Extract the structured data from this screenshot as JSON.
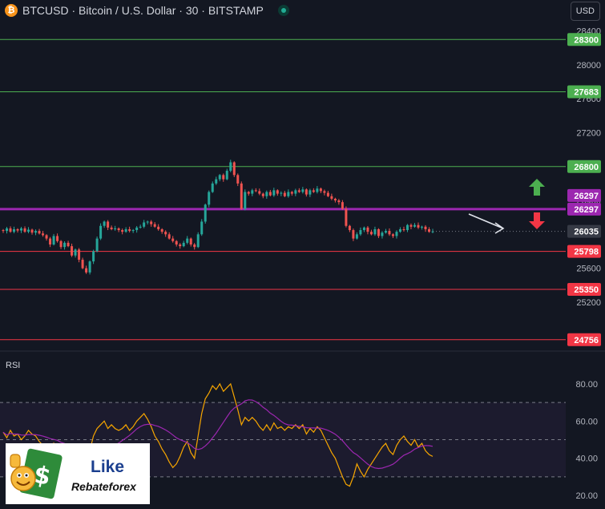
{
  "header": {
    "symbol_title": "BTCUSD · Bitcoin / U.S. Dollar · 30 · BITSTAMP",
    "icon": "bitcoin-icon",
    "currency": "USD"
  },
  "colors": {
    "background": "#131722",
    "up": "#26a69a",
    "down": "#ef5350",
    "resistance": "#4caf50",
    "support": "#f23645",
    "pivot": "#9c27b0",
    "rsi": "#f7a600",
    "rsi_ma": "#9c27b0"
  },
  "chart_data": [
    {
      "type": "candlestick",
      "title": "BTCUSD · Bitcoin / U.S. Dollar · 30 · BITSTAMP",
      "price_axis_ticks": [
        25200,
        25600,
        26000,
        26400,
        26800,
        27200,
        27600,
        28000,
        28400
      ],
      "ylim": [
        24650,
        28520
      ],
      "levels": [
        {
          "label": "28300",
          "value": 28300,
          "kind": "resistance"
        },
        {
          "label": "27683",
          "value": 27683,
          "kind": "resistance"
        },
        {
          "label": "26800",
          "value": 26800,
          "kind": "resistance"
        },
        {
          "label": "26297",
          "value": 26297,
          "kind": "pivot"
        },
        {
          "label": "25798",
          "value": 25798,
          "kind": "support"
        },
        {
          "label": "25350",
          "value": 25350,
          "kind": "support"
        },
        {
          "label": "24756",
          "value": 24756,
          "kind": "support"
        }
      ],
      "pivot_labels": [
        "26297",
        "26297"
      ],
      "current_price": {
        "label": "26035",
        "value": 26035
      },
      "close_path": [
        26040,
        26070,
        26030,
        26060,
        26045,
        26070,
        26030,
        26055,
        26020,
        26040,
        26010,
        25990,
        25950,
        25880,
        25980,
        25920,
        25850,
        25900,
        25860,
        25750,
        25820,
        25700,
        25600,
        25550,
        25680,
        25800,
        25950,
        26100,
        26150,
        26080,
        26060,
        26070,
        26050,
        26030,
        26060,
        26040,
        26050,
        26080,
        26090,
        26140,
        26150,
        26120,
        26090,
        26060,
        26030,
        26000,
        25950,
        25920,
        25880,
        25860,
        25900,
        25950,
        25880,
        25850,
        26000,
        26150,
        26350,
        26500,
        26600,
        26650,
        26700,
        26650,
        26750,
        26850,
        26700,
        26600,
        26300,
        26500,
        26480,
        26520,
        26510,
        26480,
        26450,
        26500,
        26460,
        26520,
        26480,
        26490,
        26450,
        26500,
        26480,
        26520,
        26500,
        26530,
        26470,
        26520,
        26500,
        26540,
        26510,
        26490,
        26450,
        26420,
        26400,
        26380,
        26300,
        26100,
        26050,
        25950,
        26000,
        26050,
        26080,
        26030,
        26000,
        26060,
        25980,
        26020,
        26040,
        26000,
        25980,
        26030,
        26060,
        26050,
        26110,
        26090,
        26110,
        26080,
        26090,
        26060,
        26030,
        26035
      ],
      "rsi": {
        "label": "RSI",
        "ticks": [
          20,
          40,
          60,
          80
        ],
        "bands": [
          30,
          50,
          70
        ],
        "ylim": [
          14,
          86
        ],
        "values": [
          54,
          51,
          55,
          52,
          53,
          50,
          52,
          55,
          53,
          52,
          49,
          47,
          44,
          41,
          48,
          44,
          40,
          43,
          41,
          36,
          40,
          35,
          33,
          35,
          44,
          52,
          56,
          58,
          60,
          56,
          58,
          56,
          55,
          56,
          58,
          55,
          57,
          60,
          62,
          64,
          61,
          57,
          52,
          49,
          45,
          42,
          38,
          35,
          37,
          41,
          46,
          49,
          43,
          40,
          52,
          64,
          72,
          75,
          79,
          77,
          80,
          76,
          78,
          80,
          73,
          66,
          58,
          62,
          60,
          62,
          60,
          57,
          55,
          58,
          55,
          59,
          56,
          57,
          55,
          57,
          56,
          58,
          56,
          58,
          53,
          56,
          54,
          57,
          55,
          51,
          47,
          43,
          40,
          35,
          30,
          26,
          25,
          30,
          37,
          33,
          30,
          34,
          37,
          40,
          43,
          46,
          48,
          44,
          42,
          47,
          50,
          52,
          49,
          47,
          50,
          46,
          48,
          44,
          42,
          41
        ]
      }
    }
  ],
  "watermark": {
    "like": "Like",
    "brand": "Rebateforex"
  }
}
